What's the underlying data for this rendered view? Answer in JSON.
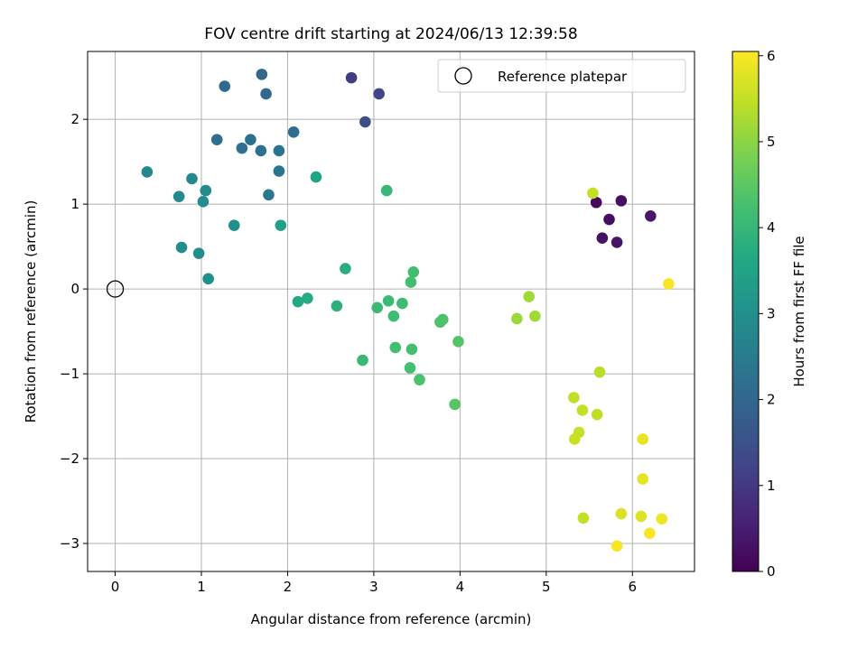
{
  "chart_data": {
    "type": "scatter",
    "title": "FOV centre drift starting at 2024/06/13 12:39:58",
    "xlabel": "Angular distance from reference (arcmin)",
    "ylabel": "Rotation from reference (arcmin)",
    "xlim": [
      -0.32,
      6.72
    ],
    "ylim": [
      -3.33,
      2.8
    ],
    "xticks": [
      0,
      1,
      2,
      3,
      4,
      5,
      6
    ],
    "yticks": [
      -3,
      -2,
      -1,
      0,
      1,
      2
    ],
    "xtick_labels": [
      "0",
      "1",
      "2",
      "3",
      "4",
      "5",
      "6"
    ],
    "ytick_labels": [
      "−3",
      "−2",
      "−1",
      "0",
      "1",
      "2"
    ],
    "grid": true,
    "legend": {
      "position": "top-right",
      "entries": [
        {
          "label": "Reference platepar",
          "marker": "open-circle"
        }
      ]
    },
    "reference_point": {
      "x": 0,
      "y": 0
    },
    "colorbar": {
      "label": "Hours from first FF file",
      "colormap": "viridis",
      "range": [
        0,
        6.05
      ],
      "ticks": [
        0,
        1,
        2,
        3,
        4,
        5,
        6
      ],
      "tick_labels": [
        "0",
        "1",
        "2",
        "3",
        "4",
        "5",
        "6"
      ]
    },
    "points": [
      {
        "x": 5.58,
        "y": 1.02,
        "c": 0.1
      },
      {
        "x": 5.73,
        "y": 0.82,
        "c": 0.2
      },
      {
        "x": 5.87,
        "y": 1.04,
        "c": 0.25
      },
      {
        "x": 5.65,
        "y": 0.6,
        "c": 0.3
      },
      {
        "x": 5.82,
        "y": 0.55,
        "c": 0.35
      },
      {
        "x": 6.21,
        "y": 0.86,
        "c": 0.4
      },
      {
        "x": 2.74,
        "y": 2.49,
        "c": 1.1
      },
      {
        "x": 3.06,
        "y": 2.3,
        "c": 1.25
      },
      {
        "x": 2.9,
        "y": 1.97,
        "c": 1.45
      },
      {
        "x": 1.7,
        "y": 2.53,
        "c": 2.0
      },
      {
        "x": 1.27,
        "y": 2.39,
        "c": 2.1
      },
      {
        "x": 1.75,
        "y": 2.3,
        "c": 2.05
      },
      {
        "x": 2.07,
        "y": 1.85,
        "c": 2.15
      },
      {
        "x": 1.18,
        "y": 1.76,
        "c": 2.2
      },
      {
        "x": 1.57,
        "y": 1.76,
        "c": 2.2
      },
      {
        "x": 1.47,
        "y": 1.66,
        "c": 2.25
      },
      {
        "x": 1.69,
        "y": 1.63,
        "c": 2.25
      },
      {
        "x": 1.9,
        "y": 1.63,
        "c": 2.3
      },
      {
        "x": 1.9,
        "y": 1.39,
        "c": 2.35
      },
      {
        "x": 1.78,
        "y": 1.11,
        "c": 2.4
      },
      {
        "x": 0.37,
        "y": 1.38,
        "c": 2.8
      },
      {
        "x": 0.89,
        "y": 1.3,
        "c": 2.8
      },
      {
        "x": 0.74,
        "y": 1.09,
        "c": 2.85
      },
      {
        "x": 1.05,
        "y": 1.16,
        "c": 2.85
      },
      {
        "x": 1.02,
        "y": 1.03,
        "c": 2.9
      },
      {
        "x": 1.38,
        "y": 0.75,
        "c": 3.0
      },
      {
        "x": 0.77,
        "y": 0.49,
        "c": 2.95
      },
      {
        "x": 0.97,
        "y": 0.42,
        "c": 2.95
      },
      {
        "x": 1.08,
        "y": 0.12,
        "c": 3.0
      },
      {
        "x": 1.92,
        "y": 0.75,
        "c": 3.4
      },
      {
        "x": 2.33,
        "y": 1.32,
        "c": 3.5
      },
      {
        "x": 2.12,
        "y": -0.15,
        "c": 3.65
      },
      {
        "x": 2.23,
        "y": -0.11,
        "c": 3.7
      },
      {
        "x": 2.67,
        "y": 0.24,
        "c": 3.75
      },
      {
        "x": 2.57,
        "y": -0.2,
        "c": 3.85
      },
      {
        "x": 3.15,
        "y": 1.16,
        "c": 4.0
      },
      {
        "x": 2.87,
        "y": -0.84,
        "c": 4.05
      },
      {
        "x": 3.04,
        "y": -0.22,
        "c": 4.1
      },
      {
        "x": 3.17,
        "y": -0.14,
        "c": 4.1
      },
      {
        "x": 3.23,
        "y": -0.32,
        "c": 4.15
      },
      {
        "x": 3.33,
        "y": -0.17,
        "c": 4.15
      },
      {
        "x": 3.43,
        "y": 0.08,
        "c": 4.2
      },
      {
        "x": 3.46,
        "y": 0.2,
        "c": 4.2
      },
      {
        "x": 3.25,
        "y": -0.69,
        "c": 4.2
      },
      {
        "x": 3.44,
        "y": -0.71,
        "c": 4.25
      },
      {
        "x": 3.42,
        "y": -0.93,
        "c": 4.25
      },
      {
        "x": 3.53,
        "y": -1.07,
        "c": 4.3
      },
      {
        "x": 3.77,
        "y": -0.39,
        "c": 4.35
      },
      {
        "x": 3.8,
        "y": -0.36,
        "c": 4.35
      },
      {
        "x": 3.98,
        "y": -0.62,
        "c": 4.4
      },
      {
        "x": 3.94,
        "y": -1.36,
        "c": 4.45
      },
      {
        "x": 4.66,
        "y": -0.35,
        "c": 5.15
      },
      {
        "x": 4.8,
        "y": -0.09,
        "c": 5.2
      },
      {
        "x": 4.87,
        "y": -0.32,
        "c": 5.2
      },
      {
        "x": 5.54,
        "y": 1.13,
        "c": 5.5
      },
      {
        "x": 5.62,
        "y": -0.98,
        "c": 5.4
      },
      {
        "x": 5.32,
        "y": -1.28,
        "c": 5.45
      },
      {
        "x": 5.42,
        "y": -1.43,
        "c": 5.5
      },
      {
        "x": 5.59,
        "y": -1.48,
        "c": 5.45
      },
      {
        "x": 5.38,
        "y": -1.69,
        "c": 5.5
      },
      {
        "x": 5.33,
        "y": -1.77,
        "c": 5.55
      },
      {
        "x": 6.12,
        "y": -1.77,
        "c": 5.85
      },
      {
        "x": 6.12,
        "y": -2.24,
        "c": 5.8
      },
      {
        "x": 5.43,
        "y": -2.7,
        "c": 5.5
      },
      {
        "x": 5.87,
        "y": -2.65,
        "c": 5.7
      },
      {
        "x": 6.1,
        "y": -2.68,
        "c": 5.75
      },
      {
        "x": 6.34,
        "y": -2.71,
        "c": 5.9
      },
      {
        "x": 6.2,
        "y": -2.88,
        "c": 6.0
      },
      {
        "x": 5.82,
        "y": -3.03,
        "c": 6.0
      },
      {
        "x": 6.42,
        "y": 0.06,
        "c": 6.0
      }
    ]
  }
}
